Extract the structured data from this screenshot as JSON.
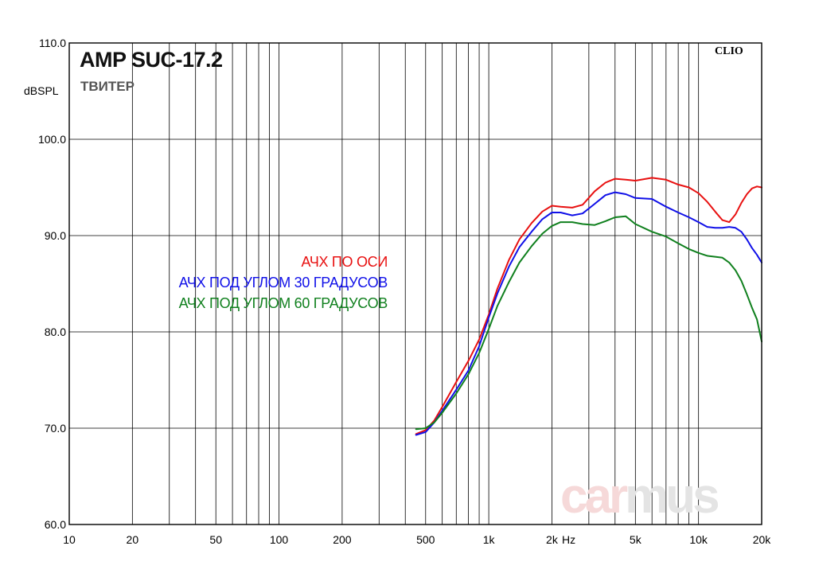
{
  "chart_data": {
    "type": "line",
    "title": "AMP SUC-17.2",
    "subtitle": "ТВИТЕР",
    "brand": "CLIO",
    "ylabel": "dBSPL",
    "xunit": "Hz",
    "xscale": "log",
    "xlim": [
      10,
      20000
    ],
    "ylim": [
      60,
      110
    ],
    "grid": true,
    "legend_position": "center-left",
    "y_ticks": [
      {
        "value": 60,
        "label": "60.0"
      },
      {
        "value": 70,
        "label": "70.0"
      },
      {
        "value": 80,
        "label": "80.0"
      },
      {
        "value": 90,
        "label": "90.0"
      },
      {
        "value": 100,
        "label": "100.0"
      },
      {
        "value": 110,
        "label": "110.0"
      }
    ],
    "x_ticks": [
      {
        "value": 10,
        "label": "10"
      },
      {
        "value": 20,
        "label": "20"
      },
      {
        "value": 50,
        "label": "50"
      },
      {
        "value": 100,
        "label": "100"
      },
      {
        "value": 200,
        "label": "200"
      },
      {
        "value": 500,
        "label": "500"
      },
      {
        "value": 1000,
        "label": "1k"
      },
      {
        "value": 2000,
        "label": "2k"
      },
      {
        "value": 5000,
        "label": "5k"
      },
      {
        "value": 10000,
        "label": "10k"
      },
      {
        "value": 20000,
        "label": "20k"
      }
    ],
    "series": [
      {
        "name": "АЧХ ПО ОСИ",
        "color": "#e81010",
        "points": [
          [
            450,
            69.4
          ],
          [
            500,
            69.8
          ],
          [
            550,
            70.8
          ],
          [
            600,
            72.2
          ],
          [
            700,
            74.8
          ],
          [
            800,
            77.0
          ],
          [
            900,
            79.2
          ],
          [
            1000,
            81.8
          ],
          [
            1100,
            84.5
          ],
          [
            1250,
            87.5
          ],
          [
            1400,
            89.6
          ],
          [
            1600,
            91.3
          ],
          [
            1800,
            92.5
          ],
          [
            2000,
            93.1
          ],
          [
            2200,
            93.0
          ],
          [
            2500,
            92.9
          ],
          [
            2800,
            93.2
          ],
          [
            3200,
            94.6
          ],
          [
            3600,
            95.5
          ],
          [
            4000,
            95.9
          ],
          [
            4500,
            95.8
          ],
          [
            5000,
            95.7
          ],
          [
            6000,
            96.0
          ],
          [
            7000,
            95.8
          ],
          [
            8000,
            95.3
          ],
          [
            9000,
            95.0
          ],
          [
            10000,
            94.4
          ],
          [
            11000,
            93.5
          ],
          [
            12000,
            92.5
          ],
          [
            13000,
            91.6
          ],
          [
            14000,
            91.4
          ],
          [
            15000,
            92.2
          ],
          [
            16000,
            93.4
          ],
          [
            17000,
            94.3
          ],
          [
            18000,
            94.9
          ],
          [
            19000,
            95.1
          ],
          [
            20000,
            95.0
          ]
        ]
      },
      {
        "name": "АЧХ ПОД УГЛОМ 30 ГРАДУСОВ",
        "color": "#1010e8",
        "points": [
          [
            450,
            69.3
          ],
          [
            500,
            69.6
          ],
          [
            550,
            70.6
          ],
          [
            600,
            71.8
          ],
          [
            700,
            74.0
          ],
          [
            800,
            76.0
          ],
          [
            900,
            78.5
          ],
          [
            1000,
            81.5
          ],
          [
            1100,
            84.0
          ],
          [
            1250,
            86.8
          ],
          [
            1400,
            88.8
          ],
          [
            1600,
            90.4
          ],
          [
            1800,
            91.7
          ],
          [
            2000,
            92.4
          ],
          [
            2200,
            92.4
          ],
          [
            2500,
            92.1
          ],
          [
            2800,
            92.3
          ],
          [
            3200,
            93.3
          ],
          [
            3600,
            94.2
          ],
          [
            4000,
            94.5
          ],
          [
            4500,
            94.3
          ],
          [
            5000,
            93.9
          ],
          [
            6000,
            93.8
          ],
          [
            7000,
            93.0
          ],
          [
            8000,
            92.4
          ],
          [
            9000,
            91.9
          ],
          [
            10000,
            91.4
          ],
          [
            11000,
            90.9
          ],
          [
            12000,
            90.8
          ],
          [
            13000,
            90.8
          ],
          [
            14000,
            90.9
          ],
          [
            15000,
            90.8
          ],
          [
            16000,
            90.4
          ],
          [
            17000,
            89.6
          ],
          [
            18000,
            88.7
          ],
          [
            19000,
            88.0
          ],
          [
            20000,
            87.2
          ]
        ]
      },
      {
        "name": "АЧХ ПОД УГЛОМ 60 ГРАДУСОВ",
        "color": "#10801e",
        "points": [
          [
            450,
            69.9
          ],
          [
            500,
            70.0
          ],
          [
            550,
            70.6
          ],
          [
            600,
            71.6
          ],
          [
            700,
            73.6
          ],
          [
            800,
            75.6
          ],
          [
            900,
            77.8
          ],
          [
            1000,
            80.3
          ],
          [
            1100,
            82.7
          ],
          [
            1250,
            85.2
          ],
          [
            1400,
            87.2
          ],
          [
            1600,
            88.9
          ],
          [
            1800,
            90.2
          ],
          [
            2000,
            91.0
          ],
          [
            2200,
            91.4
          ],
          [
            2500,
            91.4
          ],
          [
            2800,
            91.2
          ],
          [
            3200,
            91.1
          ],
          [
            3600,
            91.5
          ],
          [
            4000,
            91.9
          ],
          [
            4500,
            92.0
          ],
          [
            5000,
            91.2
          ],
          [
            6000,
            90.4
          ],
          [
            7000,
            89.9
          ],
          [
            8000,
            89.2
          ],
          [
            9000,
            88.6
          ],
          [
            10000,
            88.2
          ],
          [
            11000,
            87.9
          ],
          [
            12000,
            87.8
          ],
          [
            13000,
            87.7
          ],
          [
            14000,
            87.2
          ],
          [
            15000,
            86.4
          ],
          [
            16000,
            85.3
          ],
          [
            17000,
            83.9
          ],
          [
            18000,
            82.5
          ],
          [
            19000,
            81.3
          ],
          [
            20000,
            79.0
          ]
        ]
      }
    ]
  },
  "watermark": {
    "part1": "car",
    "part2": "mus"
  }
}
